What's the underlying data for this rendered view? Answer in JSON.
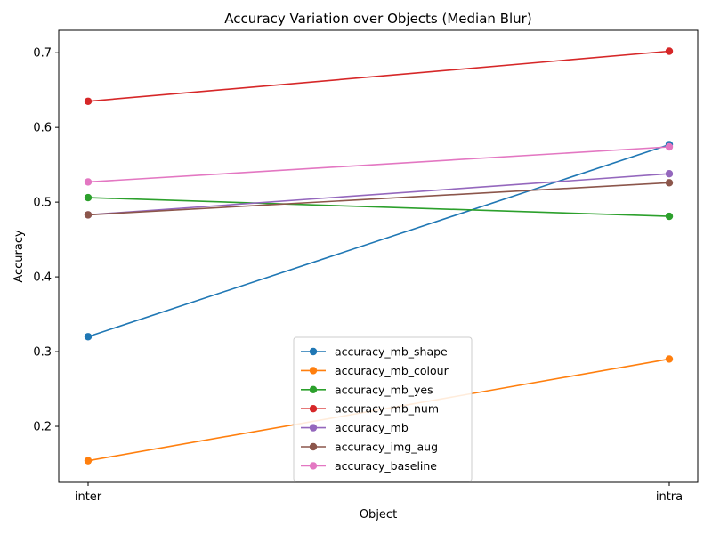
{
  "chart_data": {
    "type": "line",
    "title": "Accuracy Variation over Objects (Median Blur)",
    "xlabel": "Object",
    "ylabel": "Accuracy",
    "categories": [
      "inter",
      "intra"
    ],
    "ylim": [
      0.125,
      0.73
    ],
    "yticks": [
      0.2,
      0.3,
      0.4,
      0.5,
      0.6,
      0.7
    ],
    "ytick_labels": [
      "0.2",
      "0.3",
      "0.4",
      "0.5",
      "0.6",
      "0.7"
    ],
    "grid": false,
    "legend_position": "lower-center",
    "series": [
      {
        "name": "accuracy_mb_shape",
        "color": "#1f77b4",
        "values": [
          0.32,
          0.577
        ]
      },
      {
        "name": "accuracy_mb_colour",
        "color": "#ff7f0e",
        "values": [
          0.154,
          0.29
        ]
      },
      {
        "name": "accuracy_mb_yes",
        "color": "#2ca02c",
        "values": [
          0.506,
          0.481
        ]
      },
      {
        "name": "accuracy_mb_num",
        "color": "#d62728",
        "values": [
          0.635,
          0.702
        ]
      },
      {
        "name": "accuracy_mb",
        "color": "#9467bd",
        "values": [
          0.483,
          0.538
        ]
      },
      {
        "name": "accuracy_img_aug",
        "color": "#8c564b",
        "values": [
          0.483,
          0.526
        ]
      },
      {
        "name": "accuracy_baseline",
        "color": "#e377c2",
        "values": [
          0.527,
          0.574
        ]
      }
    ]
  }
}
